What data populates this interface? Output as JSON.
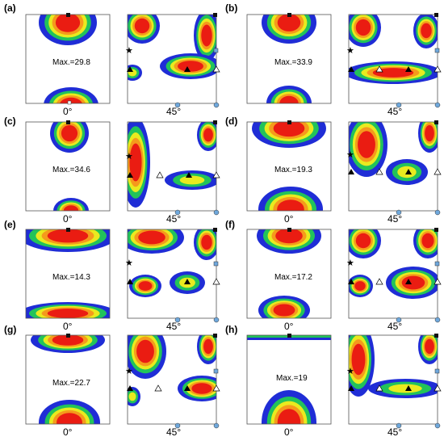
{
  "figure": {
    "panels": [
      {
        "label": "(a)",
        "max_text": "Max.=29.8",
        "left_axis_label": "0°",
        "right_axis_label": "45°"
      },
      {
        "label": "(b)",
        "max_text": "Max.=33.9",
        "left_axis_label": "",
        "right_axis_label": "45°"
      },
      {
        "label": "(c)",
        "max_text": "Max.=34.6",
        "left_axis_label": "0°",
        "right_axis_label": "45°"
      },
      {
        "label": "(d)",
        "max_text": "Max.=19.3",
        "left_axis_label": "0°",
        "right_axis_label": "45°"
      },
      {
        "label": "(e)",
        "max_text": "Max.=14.3",
        "left_axis_label": "0°",
        "right_axis_label": "45°"
      },
      {
        "label": "(f)",
        "max_text": "Max.=17.2",
        "left_axis_label": "0°",
        "right_axis_label": "45°"
      },
      {
        "label": "(g)",
        "max_text": "Max.=22.7",
        "left_axis_label": "0°",
        "right_axis_label": "45°"
      },
      {
        "label": "(h)",
        "max_text": "Max.=19",
        "left_axis_label": "0°",
        "right_axis_label": "45°"
      }
    ],
    "colors": {
      "level1": "#1f2dd6",
      "level2": "#22c35a",
      "level3": "#e9ea1f",
      "level4": "#f59a1c",
      "level5": "#ea1c12",
      "frame": "#555555",
      "marker_square": "#111111",
      "marker_blue_square": "#6fa8dc",
      "marker_blue_circle": "#6fa8dc"
    },
    "icons": [
      "black-square-marker",
      "star-marker",
      "filled-triangle-marker",
      "open-triangle-marker",
      "blue-square-marker",
      "blue-circle-marker"
    ]
  }
}
